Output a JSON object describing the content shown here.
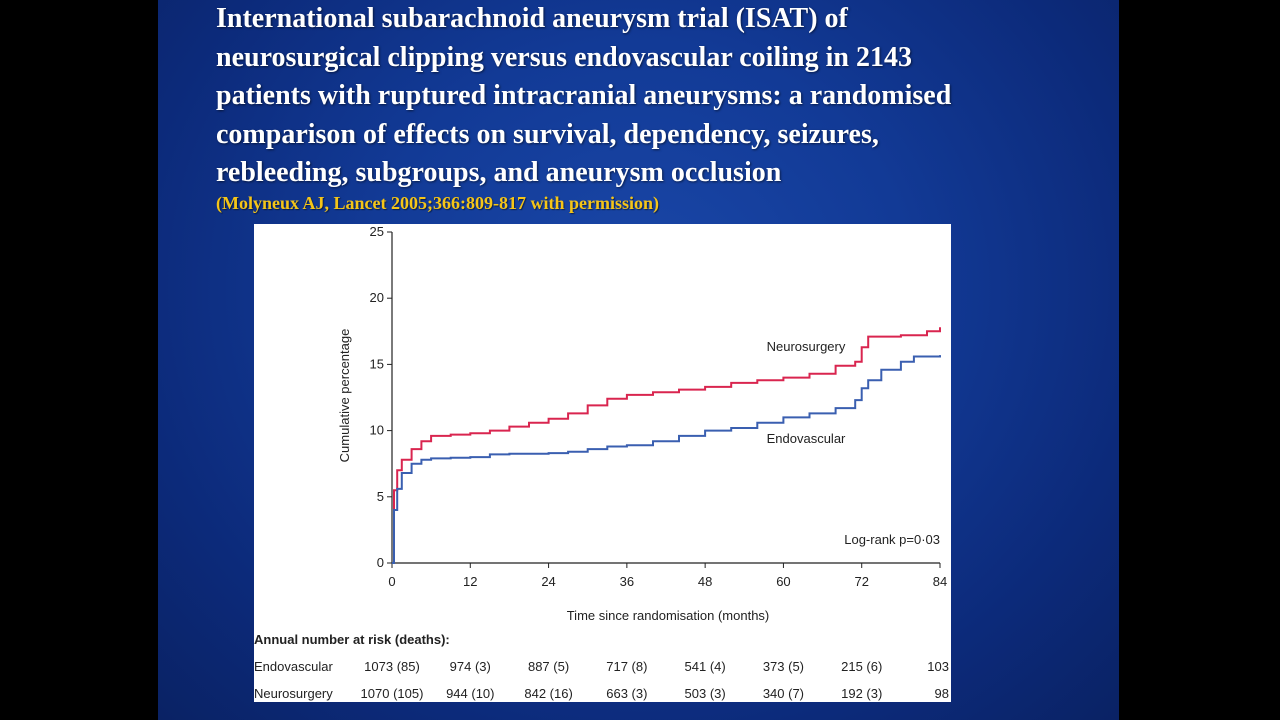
{
  "slide": {
    "title_lines": [
      "International subarachnoid aneurysm trial (ISAT) of",
      "neurosurgical clipping versus endovascular coiling in 2143",
      "patients with ruptured intracranial aneurysms: a randomised",
      "comparison of effects on survival, dependency, seizures,",
      "rebleeding, subgroups, and aneurysm occlusion"
    ],
    "citation": "(Molyneux AJ, Lancet 2005;366:809-817 with permission)",
    "colors": {
      "background": "#123a96",
      "title": "#ffffff",
      "citation": "#f5c518"
    }
  },
  "chart_data": {
    "type": "line",
    "title": "",
    "xlabel": "Time since randomisation (months)",
    "ylabel": "Cumulative percentage",
    "xlim": [
      0,
      84
    ],
    "ylim": [
      0,
      25
    ],
    "x_ticks": [
      0,
      12,
      24,
      36,
      48,
      60,
      72,
      84
    ],
    "y_ticks": [
      0,
      5,
      10,
      15,
      20,
      25
    ],
    "grid": false,
    "annotation": "Log-rank p=0·03",
    "series": [
      {
        "name": "Neurosurgery",
        "color": "#d9254f",
        "points": [
          [
            0,
            0
          ],
          [
            0.3,
            5.5
          ],
          [
            0.8,
            7.0
          ],
          [
            1.5,
            7.8
          ],
          [
            3,
            8.6
          ],
          [
            4.5,
            9.2
          ],
          [
            6,
            9.6
          ],
          [
            9,
            9.7
          ],
          [
            12,
            9.8
          ],
          [
            15,
            10.0
          ],
          [
            18,
            10.3
          ],
          [
            21,
            10.6
          ],
          [
            24,
            10.9
          ],
          [
            27,
            11.3
          ],
          [
            30,
            11.9
          ],
          [
            33,
            12.4
          ],
          [
            36,
            12.7
          ],
          [
            40,
            12.9
          ],
          [
            44,
            13.1
          ],
          [
            48,
            13.3
          ],
          [
            52,
            13.6
          ],
          [
            56,
            13.8
          ],
          [
            60,
            14.0
          ],
          [
            64,
            14.3
          ],
          [
            68,
            14.9
          ],
          [
            71,
            15.2
          ],
          [
            72,
            16.3
          ],
          [
            73,
            17.1
          ],
          [
            78,
            17.2
          ],
          [
            82,
            17.5
          ],
          [
            84,
            17.8
          ]
        ]
      },
      {
        "name": "Endovascular",
        "color": "#3a5fb0",
        "points": [
          [
            0,
            0
          ],
          [
            0.3,
            4.0
          ],
          [
            0.8,
            5.6
          ],
          [
            1.5,
            6.8
          ],
          [
            3,
            7.5
          ],
          [
            4.5,
            7.8
          ],
          [
            6,
            7.9
          ],
          [
            9,
            7.95
          ],
          [
            12,
            8.0
          ],
          [
            15,
            8.2
          ],
          [
            18,
            8.25
          ],
          [
            21,
            8.25
          ],
          [
            24,
            8.3
          ],
          [
            27,
            8.4
          ],
          [
            30,
            8.6
          ],
          [
            33,
            8.8
          ],
          [
            36,
            8.9
          ],
          [
            40,
            9.2
          ],
          [
            44,
            9.6
          ],
          [
            48,
            10.0
          ],
          [
            52,
            10.2
          ],
          [
            56,
            10.6
          ],
          [
            60,
            11.0
          ],
          [
            64,
            11.3
          ],
          [
            68,
            11.7
          ],
          [
            71,
            12.3
          ],
          [
            72,
            13.2
          ],
          [
            73,
            13.8
          ],
          [
            75,
            14.6
          ],
          [
            78,
            15.2
          ],
          [
            80,
            15.6
          ],
          [
            84,
            15.7
          ]
        ]
      }
    ],
    "risk_table": {
      "heading": "Annual number at risk (deaths):",
      "rows": [
        {
          "label": "Endovascular",
          "values": [
            "1073 (85)",
            "974 (3)",
            "887 (5)",
            "717 (8)",
            "541 (4)",
            "373 (5)",
            "215 (6)",
            "103"
          ]
        },
        {
          "label": "Neurosurgery",
          "values": [
            "1070 (105)",
            "944 (10)",
            "842 (16)",
            "663 (3)",
            "503 (3)",
            "340 (7)",
            "192 (3)",
            "98"
          ]
        }
      ]
    }
  }
}
